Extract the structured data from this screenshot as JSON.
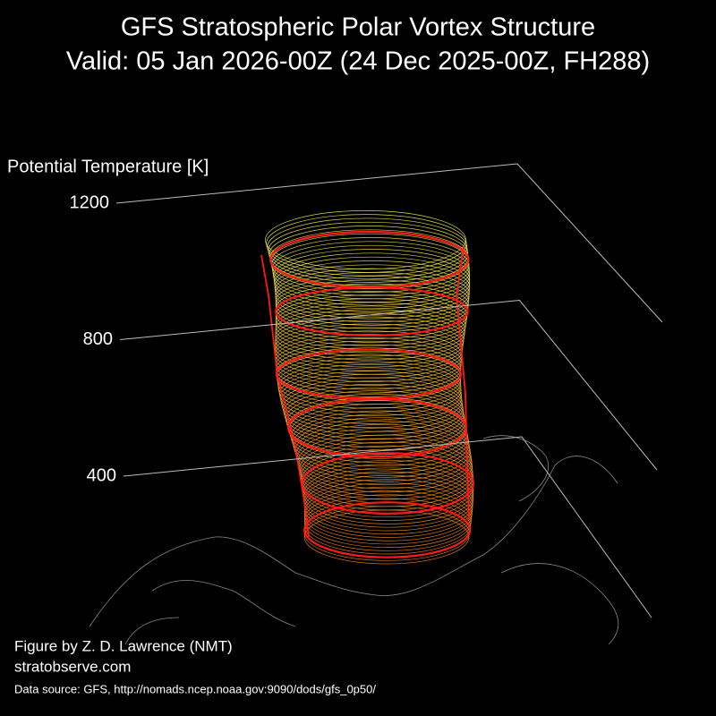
{
  "chart_data": {
    "type": "vortex3d",
    "title": "GFS Stratospheric Polar Vortex Structure",
    "subtitle": "Valid: 05 Jan 2026-00Z  (24 Dec 2025-00Z, FH288)",
    "zlabel": "Potential Temperature [K]",
    "zlim": [
      400,
      1200
    ],
    "zticks": [
      400,
      800,
      1200
    ],
    "credit": "Figure by Z. D. Lawrence (NMT)",
    "website": "stratobserve.com",
    "source": "Data source: GFS, http://nomads.ncep.noaa.gov:9090/dods/gfs_0p50/"
  }
}
